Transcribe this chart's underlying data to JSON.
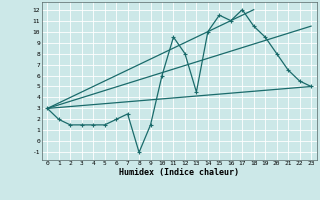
{
  "xlabel": "Humidex (Indice chaleur)",
  "background_color": "#cce8e8",
  "grid_color": "#ffffff",
  "line_color": "#1a6b6b",
  "xlim": [
    -0.5,
    23.5
  ],
  "ylim": [
    -1.7,
    12.7
  ],
  "xticks": [
    0,
    1,
    2,
    3,
    4,
    5,
    6,
    7,
    8,
    9,
    10,
    11,
    12,
    13,
    14,
    15,
    16,
    17,
    18,
    19,
    20,
    21,
    22,
    23
  ],
  "yticks": [
    -1,
    0,
    1,
    2,
    3,
    4,
    5,
    6,
    7,
    8,
    9,
    10,
    11,
    12
  ],
  "series": [
    {
      "x": [
        0,
        1,
        2,
        3,
        4,
        5,
        6,
        7,
        8,
        9,
        10,
        11,
        12,
        13,
        14,
        15,
        16,
        17,
        18,
        19,
        20,
        21,
        22,
        23
      ],
      "y": [
        3,
        2,
        1.5,
        1.5,
        1.5,
        1.5,
        2,
        2.5,
        -1,
        1.5,
        6,
        9.5,
        8,
        4.5,
        10,
        11.5,
        11,
        12,
        10.5,
        9.5,
        8,
        6.5,
        5.5,
        5
      ],
      "marker": true
    },
    {
      "x": [
        0,
        23
      ],
      "y": [
        3,
        5
      ],
      "marker": false
    },
    {
      "x": [
        0,
        18
      ],
      "y": [
        3,
        12
      ],
      "marker": false
    },
    {
      "x": [
        0,
        23
      ],
      "y": [
        3,
        10.5
      ],
      "marker": false
    }
  ]
}
